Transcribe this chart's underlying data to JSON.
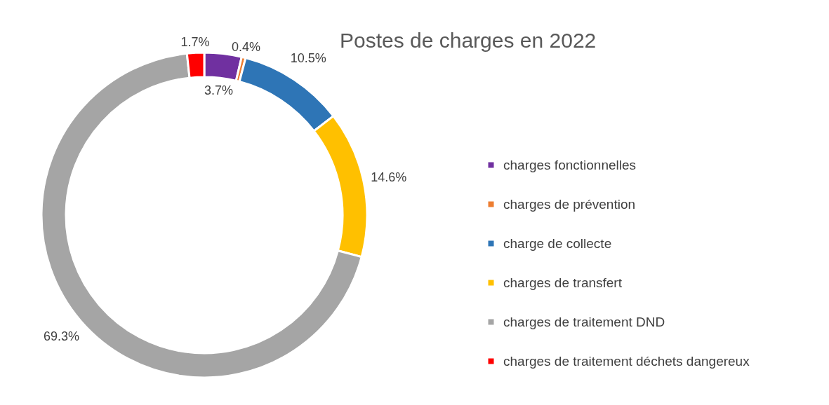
{
  "chart_data": {
    "type": "donut",
    "title": "Postes de charges en 2022",
    "categories": [
      "charges fonctionnelles",
      "charges de prévention",
      "charge de collecte",
      "charges de transfert",
      "charges de traitement DND",
      "charges de traitement déchets dangereux"
    ],
    "values": [
      3.7,
      0.4,
      10.5,
      14.6,
      69.3,
      1.7
    ],
    "colors": [
      "#7030a0",
      "#ed7d31",
      "#2e75b6",
      "#ffc000",
      "#a5a5a5",
      "#ff0000"
    ],
    "value_labels": [
      "3.7%",
      "0.4%",
      "10.5%",
      "14.6%",
      "69.3%",
      "1.7%"
    ],
    "legend": "right"
  }
}
